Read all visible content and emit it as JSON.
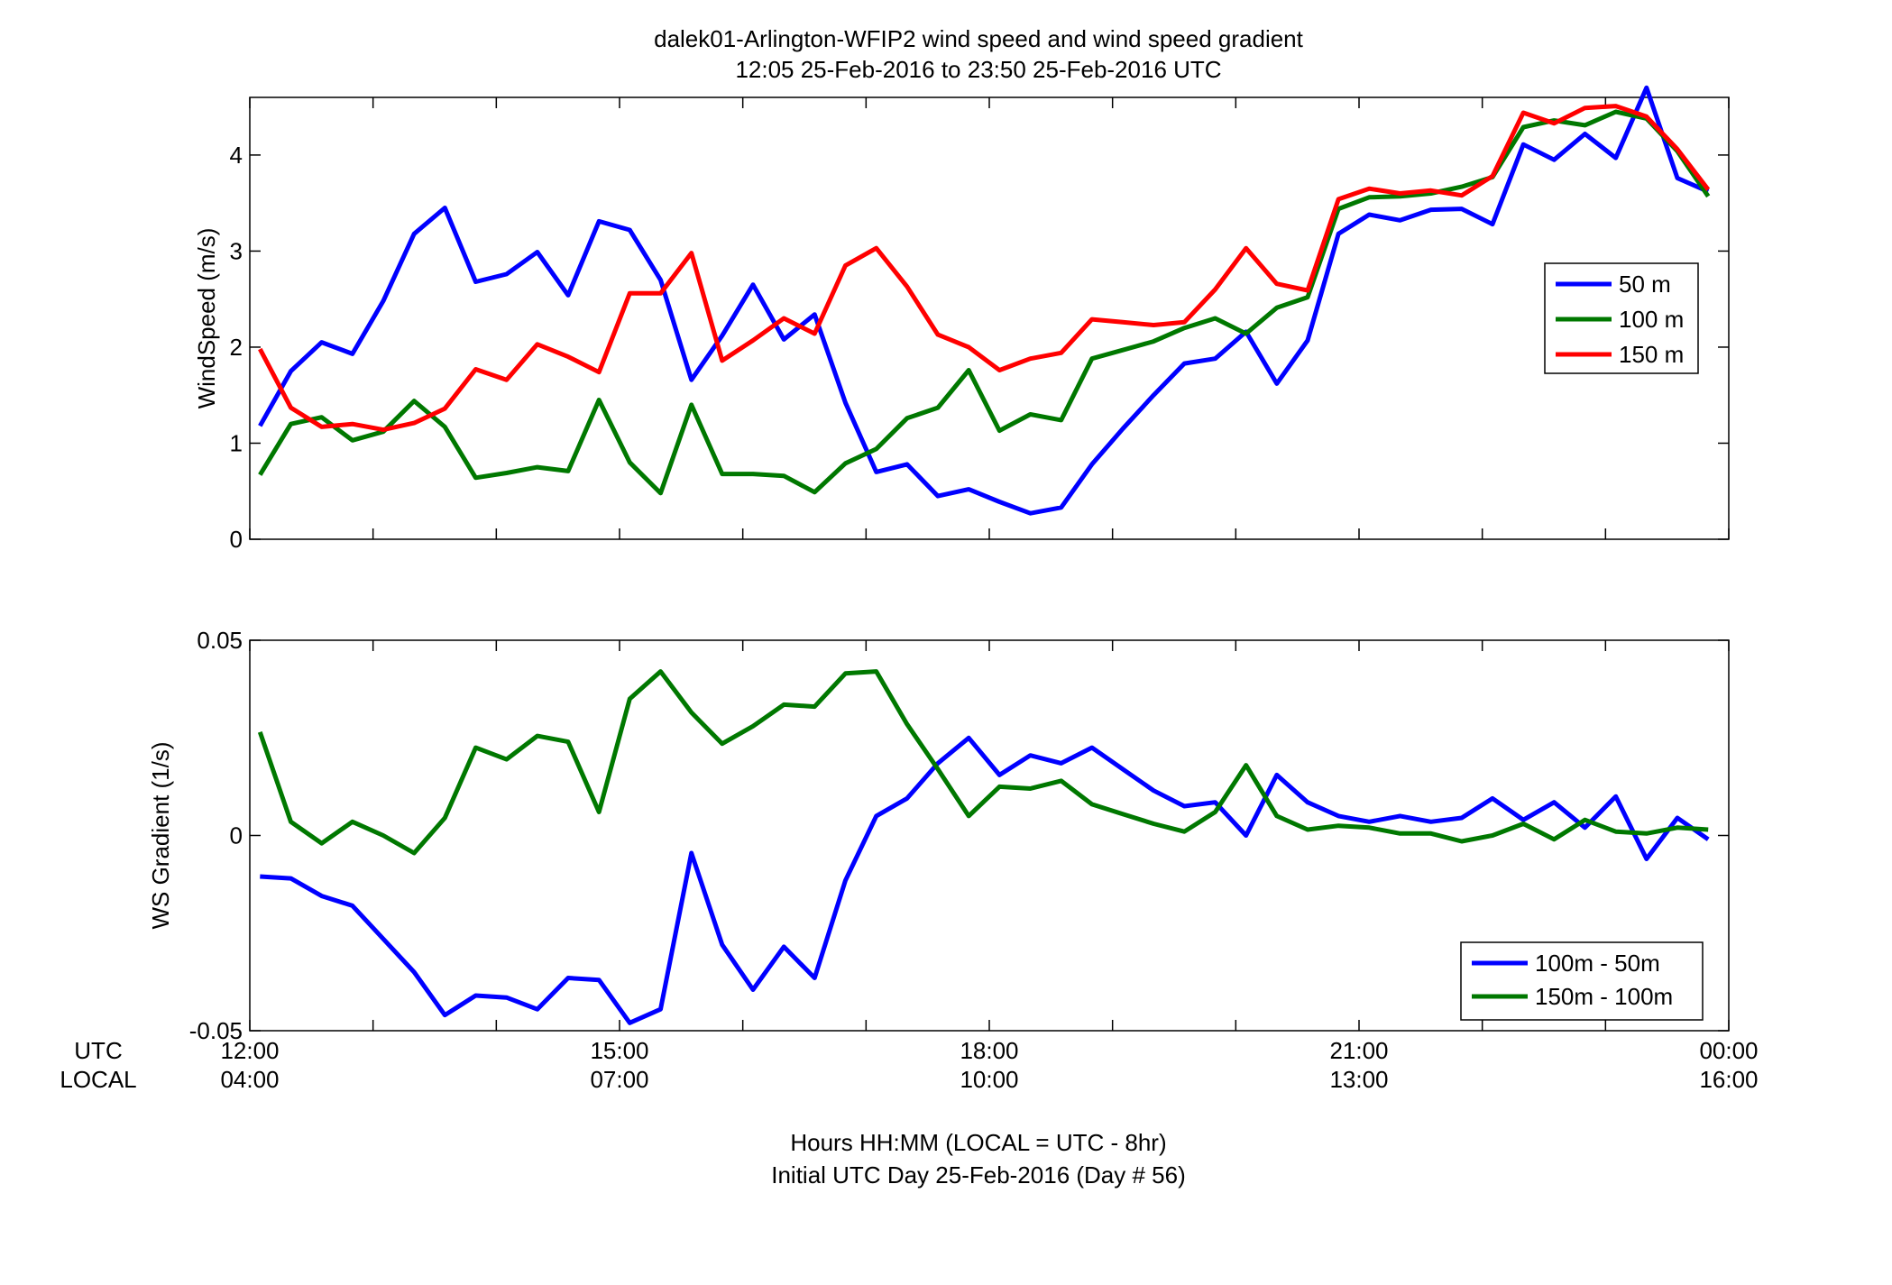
{
  "title_line1": "dalek01-Arlington-WFIP2  wind speed and wind speed gradient",
  "title_line2": "12:05 25-Feb-2016 to 23:50 25-Feb-2016  UTC",
  "xlabel_line1": "Hours HH:MM  (LOCAL = UTC - 8hr)",
  "xlabel_line2": "Initial UTC Day 25-Feb-2016 (Day # 56)",
  "row_label_utc": "UTC",
  "row_label_local": "LOCAL",
  "chart_data": [
    {
      "type": "line",
      "ylabel": "WindSpeed (m/s)",
      "ylim": [
        0,
        4.6
      ],
      "yticks": [
        "0",
        "1",
        "2",
        "3",
        "4"
      ],
      "grid": false,
      "legend_position": "right-middle",
      "x_unit": "hours after 12:00 UTC",
      "xlim": [
        0,
        12
      ],
      "x_ticks_utc": [
        "12:00",
        "15:00",
        "18:00",
        "21:00",
        "00:00"
      ],
      "x_ticks_local": [
        "04:00",
        "07:00",
        "10:00",
        "13:00",
        "16:00"
      ],
      "x": [
        0.083,
        0.333,
        0.583,
        0.833,
        1.083,
        1.333,
        1.583,
        1.833,
        2.083,
        2.333,
        2.583,
        2.833,
        3.083,
        3.333,
        3.583,
        3.833,
        4.083,
        4.333,
        4.583,
        4.833,
        5.083,
        5.333,
        5.583,
        5.833,
        6.083,
        6.333,
        6.583,
        6.833,
        7.083,
        7.333,
        7.583,
        7.833,
        8.083,
        8.333,
        8.583,
        8.833,
        9.083,
        9.333,
        9.583,
        9.833,
        10.083,
        10.333,
        10.583,
        10.833,
        11.083,
        11.333,
        11.583,
        11.833
      ],
      "series": [
        {
          "name": "50 m",
          "color": "#0000ff",
          "values": [
            1.18,
            1.75,
            2.05,
            1.93,
            2.48,
            3.18,
            3.45,
            2.68,
            2.76,
            2.99,
            2.54,
            3.31,
            3.22,
            2.7,
            1.66,
            2.12,
            2.65,
            2.08,
            2.34,
            1.42,
            0.7,
            0.78,
            0.45,
            0.52,
            0.39,
            0.27,
            0.33,
            0.78,
            1.15,
            1.5,
            1.83,
            1.88,
            2.16,
            1.62,
            2.07,
            3.18,
            3.38,
            3.32,
            3.43,
            3.44,
            3.28,
            4.11,
            3.95,
            4.22,
            3.97,
            4.7,
            3.76,
            3.62
          ]
        },
        {
          "name": "100 m",
          "color": "#007800",
          "values": [
            0.67,
            1.2,
            1.27,
            1.03,
            1.12,
            1.44,
            1.17,
            0.64,
            0.69,
            0.75,
            0.71,
            1.45,
            0.8,
            0.48,
            1.4,
            0.68,
            0.68,
            0.66,
            0.49,
            0.79,
            0.94,
            1.26,
            1.37,
            1.76,
            1.13,
            1.3,
            1.24,
            1.88,
            1.97,
            2.06,
            2.2,
            2.3,
            2.14,
            2.41,
            2.52,
            3.44,
            3.56,
            3.57,
            3.6,
            3.67,
            3.77,
            4.29,
            4.36,
            4.31,
            4.45,
            4.38,
            4.04,
            3.57
          ]
        },
        {
          "name": "150 m",
          "color": "#ff0000",
          "values": [
            1.98,
            1.37,
            1.17,
            1.2,
            1.14,
            1.21,
            1.36,
            1.77,
            1.66,
            2.03,
            1.9,
            1.74,
            2.56,
            2.56,
            2.98,
            1.86,
            2.07,
            2.3,
            2.14,
            2.85,
            3.03,
            2.63,
            2.13,
            2.0,
            1.76,
            1.88,
            1.94,
            2.29,
            2.26,
            2.23,
            2.26,
            2.6,
            3.03,
            2.66,
            2.59,
            3.54,
            3.65,
            3.6,
            3.63,
            3.58,
            3.78,
            4.44,
            4.33,
            4.49,
            4.51,
            4.4,
            4.06,
            3.64
          ]
        }
      ]
    },
    {
      "type": "line",
      "ylabel": "WS Gradient (1/s)",
      "ylim": [
        -0.05,
        0.05
      ],
      "yticks": [
        "-0.05",
        "0",
        "0.05"
      ],
      "grid": false,
      "legend_position": "bottom-right",
      "x_unit": "hours after 12:00 UTC",
      "xlim": [
        0,
        12
      ],
      "x_ticks_utc": [
        "12:00",
        "15:00",
        "18:00",
        "21:00",
        "00:00"
      ],
      "x_ticks_local": [
        "04:00",
        "07:00",
        "10:00",
        "13:00",
        "16:00"
      ],
      "x": [
        0.083,
        0.333,
        0.583,
        0.833,
        1.083,
        1.333,
        1.583,
        1.833,
        2.083,
        2.333,
        2.583,
        2.833,
        3.083,
        3.333,
        3.583,
        3.833,
        4.083,
        4.333,
        4.583,
        4.833,
        5.083,
        5.333,
        5.583,
        5.833,
        6.083,
        6.333,
        6.583,
        6.833,
        7.083,
        7.333,
        7.583,
        7.833,
        8.083,
        8.333,
        8.583,
        8.833,
        9.083,
        9.333,
        9.583,
        9.833,
        10.083,
        10.333,
        10.583,
        10.833,
        11.083,
        11.333,
        11.583,
        11.833
      ],
      "series": [
        {
          "name": "100m - 50m",
          "color": "#0000ff",
          "values": [
            -0.0105,
            -0.011,
            -0.0155,
            -0.018,
            -0.0265,
            -0.035,
            -0.046,
            -0.041,
            -0.0415,
            -0.0445,
            -0.0365,
            -0.037,
            -0.048,
            -0.0445,
            -0.0045,
            -0.028,
            -0.0395,
            -0.0285,
            -0.0365,
            -0.0115,
            0.005,
            0.0095,
            0.0185,
            0.025,
            0.0155,
            0.0205,
            0.0185,
            0.0225,
            0.017,
            0.0115,
            0.0075,
            0.0085,
            0.0,
            0.0155,
            0.0085,
            0.005,
            0.0035,
            0.005,
            0.0035,
            0.0045,
            0.0095,
            0.004,
            0.0085,
            0.002,
            0.01,
            -0.006,
            0.0045,
            -0.001
          ]
        },
        {
          "name": "150m - 100m",
          "color": "#007800",
          "values": [
            0.0265,
            0.0035,
            -0.002,
            0.0035,
            0.0,
            -0.0045,
            0.0045,
            0.0225,
            0.0195,
            0.0255,
            0.024,
            0.006,
            0.035,
            0.042,
            0.0315,
            0.0235,
            0.028,
            0.0335,
            0.033,
            0.0415,
            0.042,
            0.0285,
            0.017,
            0.005,
            0.0125,
            0.012,
            0.014,
            0.008,
            0.0055,
            0.003,
            0.001,
            0.006,
            0.018,
            0.005,
            0.0015,
            0.0025,
            0.002,
            0.0005,
            0.0005,
            -0.0015,
            0.0,
            0.003,
            -0.001,
            0.004,
            0.001,
            0.0005,
            0.002,
            0.0015
          ]
        }
      ]
    }
  ]
}
